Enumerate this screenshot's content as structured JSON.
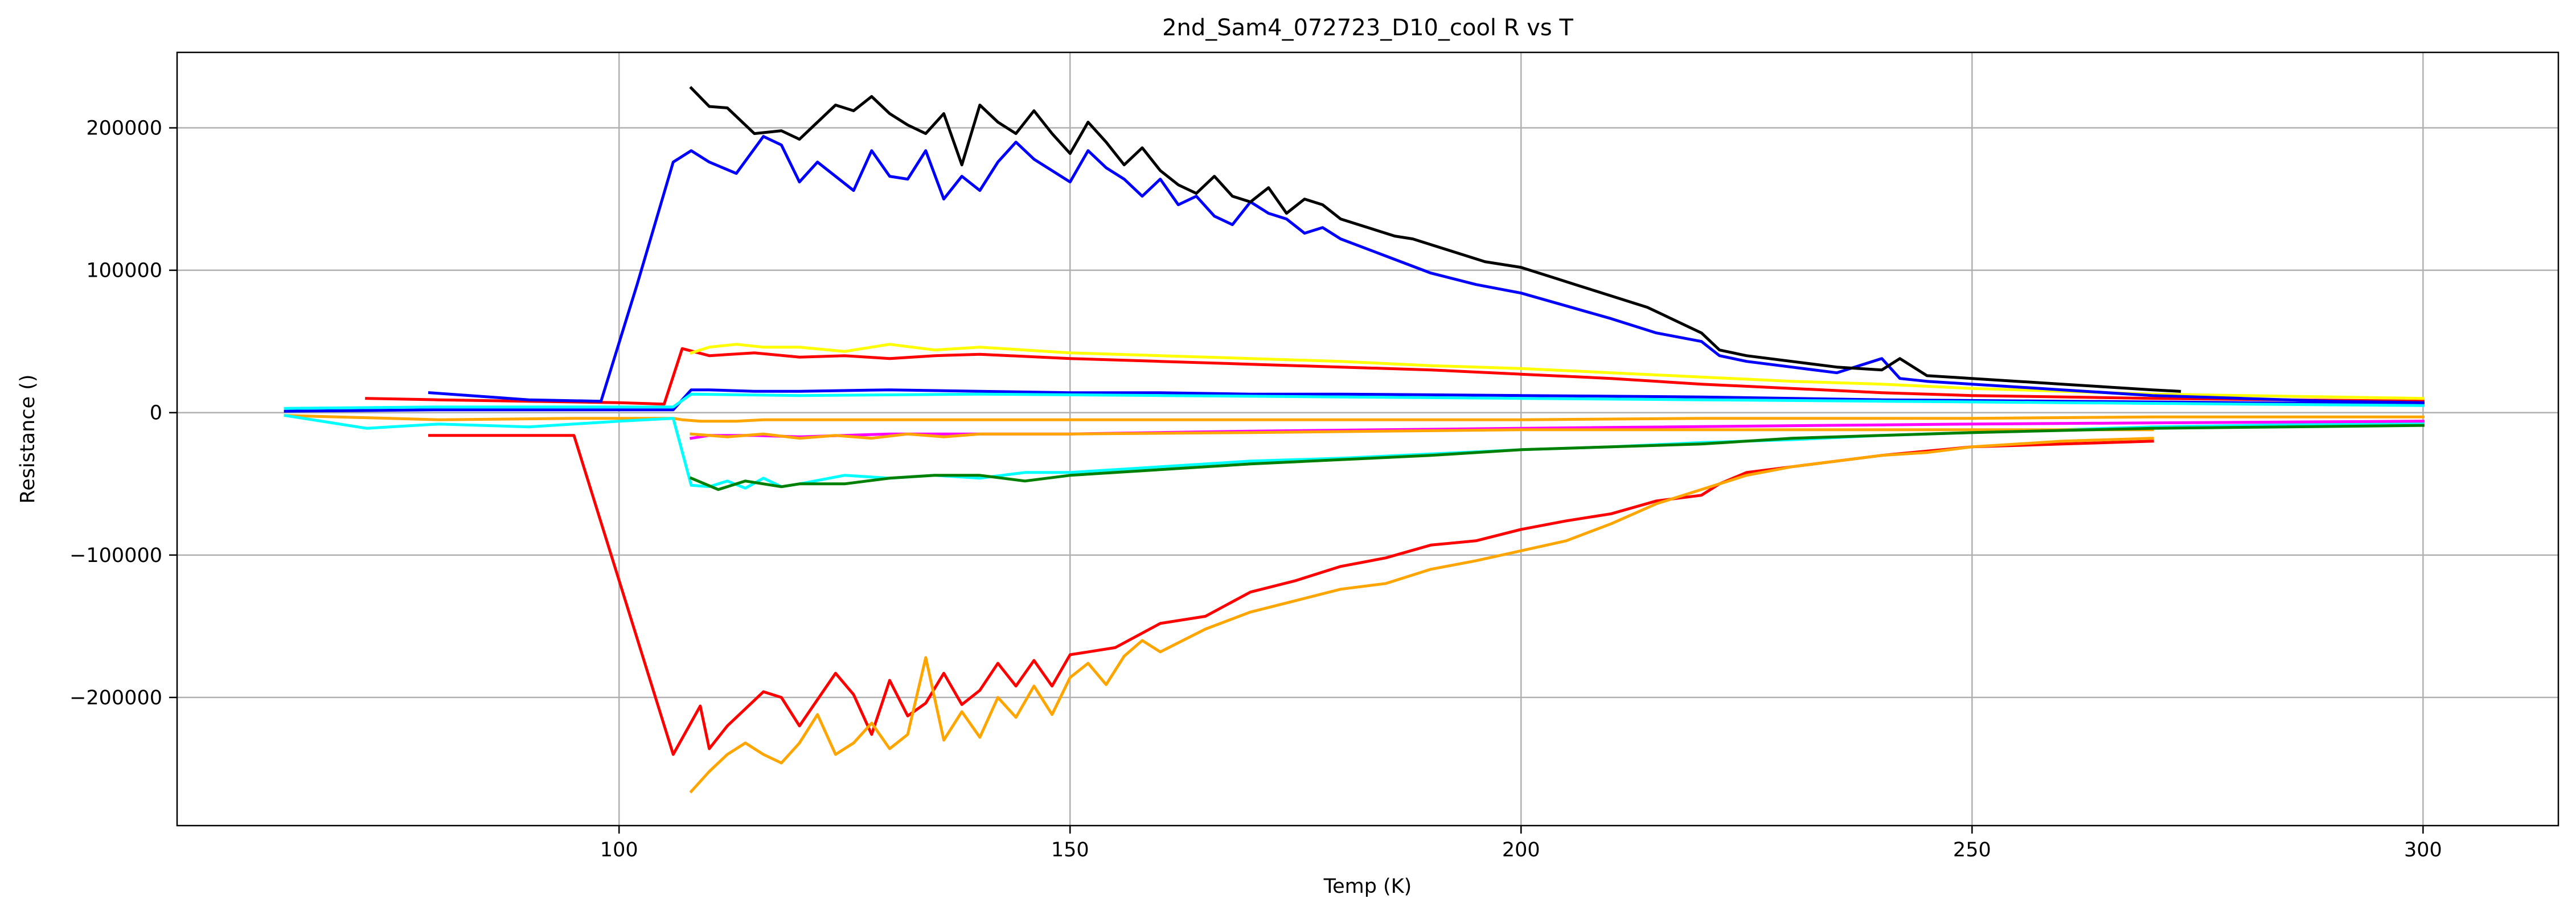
{
  "chart_data": {
    "type": "line",
    "title": "2nd_Sam4_072723_D10_cool R vs T",
    "xlabel": "Temp (K)",
    "ylabel": "Resistance ()",
    "xlim": [
      51,
      315
    ],
    "ylim": [
      -290000,
      253000
    ],
    "xticks": [
      100,
      150,
      200,
      250,
      300
    ],
    "xtick_labels": [
      "100",
      "150",
      "200",
      "250",
      "300"
    ],
    "yticks": [
      -200000,
      -100000,
      0,
      100000,
      200000
    ],
    "ytick_labels": [
      "−200000",
      "−100000",
      "0",
      "100000",
      "200000"
    ],
    "grid": true,
    "series": [
      {
        "color": "#ffa500",
        "x": [
          63,
          80,
          95,
          106,
          107,
          109,
          110,
          113,
          116,
          120,
          125,
          130,
          135,
          140,
          150,
          170,
          200,
          220,
          230,
          250,
          270,
          300
        ],
        "y": [
          -2000,
          -5000,
          -4000,
          -4000,
          -5000,
          -6000,
          -6000,
          -6000,
          -5000,
          -5000,
          -5000,
          -5000,
          -5000,
          -5000,
          -5000,
          -5000,
          -5000,
          -4000,
          -4000,
          -4000,
          -3000,
          -3000
        ]
      },
      {
        "color": "#00ffff",
        "x": [
          63,
          72,
          80,
          90,
          100,
          106,
          108,
          110,
          112,
          114,
          116,
          118,
          120,
          125,
          130,
          135,
          140,
          145,
          150,
          160,
          170,
          180,
          190,
          200,
          210,
          220,
          230,
          240,
          250,
          270,
          300
        ],
        "y": [
          -2000,
          -11000,
          -8000,
          -10000,
          -6000,
          -4000,
          -51000,
          -52000,
          -48000,
          -53000,
          -46000,
          -52000,
          -50000,
          -44000,
          -46000,
          -44000,
          -46000,
          -42000,
          -42000,
          -38000,
          -34000,
          -32000,
          -29000,
          -26000,
          -24000,
          -21000,
          -19000,
          -16000,
          -14000,
          -10000,
          -7000
        ]
      },
      {
        "color": "#ff0000",
        "x": [
          79,
          95,
          106,
          109,
          110,
          112,
          114,
          116,
          118,
          120,
          124,
          126,
          128,
          130,
          132,
          134,
          136,
          138,
          140,
          142,
          144,
          146,
          148,
          150,
          155,
          160,
          165,
          170,
          175,
          180,
          185,
          190,
          195,
          200,
          205,
          210,
          215,
          220,
          222,
          225,
          230,
          240,
          245,
          250,
          260,
          270
        ],
        "y": [
          -16000,
          -16000,
          -240000,
          -206000,
          -236000,
          -220000,
          -208000,
          -196000,
          -200000,
          -220000,
          -183000,
          -198000,
          -226000,
          -188000,
          -213000,
          -204000,
          -183000,
          -205000,
          -195000,
          -176000,
          -192000,
          -174000,
          -192000,
          -170000,
          -165000,
          -148000,
          -143000,
          -126000,
          -118000,
          -108000,
          -102000,
          -93000,
          -90000,
          -82000,
          -76000,
          -71000,
          -62000,
          -58000,
          -50000,
          -42000,
          -38000,
          -30000,
          -27000,
          -24000,
          -22000,
          -20000
        ]
      },
      {
        "color": "#ffa500",
        "x": [
          108,
          110,
          112,
          114,
          116,
          118,
          120,
          122,
          124,
          126,
          128,
          130,
          132,
          134,
          136,
          138,
          140,
          142,
          144,
          146,
          148,
          150,
          152,
          154,
          156,
          158,
          160,
          165,
          170,
          175,
          180,
          185,
          190,
          195,
          200,
          205,
          210,
          215,
          220,
          225,
          230,
          240,
          245,
          250,
          260,
          270
        ],
        "y": [
          -266000,
          -252000,
          -240000,
          -232000,
          -240000,
          -246000,
          -232000,
          -212000,
          -240000,
          -232000,
          -218000,
          -236000,
          -226000,
          -172000,
          -230000,
          -210000,
          -228000,
          -200000,
          -214000,
          -192000,
          -212000,
          -186000,
          -176000,
          -191000,
          -171000,
          -160000,
          -168000,
          -152000,
          -140000,
          -132000,
          -124000,
          -120000,
          -110000,
          -104000,
          -97000,
          -90000,
          -78000,
          -64000,
          -54000,
          -44000,
          -38000,
          -30000,
          -28000,
          -24000,
          -20000,
          -18000
        ]
      },
      {
        "color": "#ff00ff",
        "x": [
          108,
          110,
          115,
          120,
          130,
          140,
          150,
          170,
          200,
          250,
          300
        ],
        "y": [
          -18000,
          -16000,
          -16000,
          -17000,
          -15000,
          -15000,
          -15000,
          -13000,
          -11000,
          -8000,
          -6000
        ]
      },
      {
        "color": "#ffa500",
        "x": [
          108,
          112,
          116,
          120,
          124,
          128,
          132,
          136,
          140,
          150,
          170,
          200,
          250,
          270
        ],
        "y": [
          -15000,
          -17000,
          -15000,
          -18000,
          -16000,
          -18000,
          -15000,
          -17000,
          -15000,
          -15000,
          -14000,
          -12000,
          -12000,
          -12000
        ]
      },
      {
        "color": "#008000",
        "x": [
          108,
          111,
          114,
          118,
          120,
          125,
          130,
          135,
          140,
          145,
          150,
          155,
          160,
          170,
          180,
          190,
          200,
          210,
          220,
          225,
          230,
          240,
          250,
          270,
          300
        ],
        "y": [
          -46000,
          -54000,
          -48000,
          -52000,
          -50000,
          -50000,
          -46000,
          -44000,
          -44000,
          -48000,
          -44000,
          -42000,
          -40000,
          -36000,
          -33000,
          -30000,
          -26000,
          -24000,
          -22000,
          -20000,
          -18000,
          -16000,
          -14000,
          -11000,
          -9000
        ]
      },
      {
        "color": "#ff0000",
        "x": [
          72,
          80,
          90,
          100,
          105,
          107,
          110,
          115,
          120,
          125,
          130,
          135,
          140,
          150,
          160,
          170,
          180,
          190,
          200,
          210,
          220,
          230,
          240,
          250,
          270,
          300
        ],
        "y": [
          10000,
          9000,
          8000,
          7000,
          6000,
          45000,
          40000,
          42000,
          39000,
          40000,
          38000,
          40000,
          41000,
          38000,
          36000,
          34000,
          32000,
          30000,
          27000,
          24000,
          20000,
          17000,
          14000,
          12000,
          10000,
          8000
        ]
      },
      {
        "color": "#ffff00",
        "x": [
          108,
          110,
          113,
          116,
          120,
          125,
          130,
          135,
          140,
          145,
          150,
          160,
          170,
          180,
          190,
          200,
          210,
          220,
          230,
          240,
          250,
          270,
          300
        ],
        "y": [
          42000,
          46000,
          48000,
          46000,
          46000,
          43000,
          48000,
          44000,
          46000,
          44000,
          42000,
          40000,
          38000,
          36000,
          33000,
          31000,
          28000,
          25000,
          22000,
          20000,
          17000,
          13000,
          10000
        ]
      },
      {
        "color": "#0000ff",
        "x": [
          63,
          80,
          95,
          106,
          108,
          110,
          115,
          120,
          130,
          140,
          150,
          160,
          170,
          180,
          200,
          220,
          240,
          260,
          280,
          300
        ],
        "y": [
          1000,
          2000,
          2000,
          2000,
          16000,
          16000,
          15000,
          15000,
          16000,
          15000,
          14000,
          14000,
          13000,
          13000,
          12000,
          11000,
          9000,
          8000,
          7000,
          6000
        ]
      },
      {
        "color": "#00ffff",
        "x": [
          63,
          80,
          100,
          106,
          108,
          120,
          140,
          160,
          180,
          200,
          220,
          240,
          260,
          280,
          300
        ],
        "y": [
          3000,
          4000,
          4000,
          4000,
          13000,
          12000,
          13000,
          12000,
          11000,
          10000,
          9000,
          8000,
          7000,
          6000,
          5000
        ]
      },
      {
        "color": "#0000ff",
        "x": [
          79,
          90,
          98,
          102,
          106,
          108,
          110,
          113,
          116,
          118,
          120,
          122,
          124,
          126,
          128,
          130,
          132,
          134,
          136,
          138,
          140,
          142,
          144,
          146,
          148,
          150,
          152,
          154,
          156,
          158,
          160,
          162,
          164,
          166,
          168,
          170,
          172,
          174,
          176,
          178,
          180,
          185,
          190,
          195,
          200,
          205,
          210,
          215,
          220,
          222,
          225,
          230,
          235,
          240,
          242,
          245,
          250,
          260,
          270,
          280,
          290,
          300
        ],
        "y": [
          14000,
          9000,
          8000,
          90000,
          176000,
          184000,
          176000,
          168000,
          194000,
          188000,
          162000,
          176000,
          166000,
          156000,
          184000,
          166000,
          164000,
          184000,
          150000,
          166000,
          156000,
          176000,
          190000,
          178000,
          170000,
          162000,
          184000,
          172000,
          164000,
          152000,
          164000,
          146000,
          152000,
          138000,
          132000,
          148000,
          140000,
          136000,
          126000,
          130000,
          122000,
          110000,
          98000,
          90000,
          84000,
          75000,
          66000,
          56000,
          50000,
          40000,
          36000,
          32000,
          28000,
          38000,
          24000,
          22000,
          20000,
          16000,
          12000,
          10000,
          8000,
          7000
        ]
      },
      {
        "color": "#000000",
        "x": [
          108,
          110,
          112,
          115,
          118,
          120,
          122,
          124,
          126,
          128,
          130,
          132,
          134,
          136,
          138,
          140,
          142,
          144,
          146,
          148,
          150,
          152,
          154,
          156,
          158,
          160,
          162,
          164,
          166,
          168,
          170,
          172,
          174,
          176,
          178,
          180,
          182,
          184,
          186,
          188,
          190,
          192,
          194,
          196,
          198,
          200,
          202,
          204,
          206,
          208,
          210,
          212,
          214,
          216,
          218,
          220,
          222,
          225,
          230,
          235,
          240,
          242,
          245,
          250,
          255,
          260,
          265,
          270,
          273
        ],
        "y": [
          228000,
          215000,
          214000,
          196000,
          198000,
          192000,
          204000,
          216000,
          212000,
          222000,
          210000,
          202000,
          196000,
          210000,
          174000,
          216000,
          204000,
          196000,
          212000,
          196000,
          182000,
          204000,
          190000,
          174000,
          186000,
          170000,
          160000,
          154000,
          166000,
          152000,
          148000,
          158000,
          140000,
          150000,
          146000,
          136000,
          132000,
          128000,
          124000,
          122000,
          118000,
          114000,
          110000,
          106000,
          104000,
          102000,
          98000,
          94000,
          90000,
          86000,
          82000,
          78000,
          74000,
          68000,
          62000,
          56000,
          44000,
          40000,
          36000,
          32000,
          30000,
          38000,
          26000,
          24000,
          22000,
          20000,
          18000,
          16000,
          15000
        ]
      }
    ]
  }
}
